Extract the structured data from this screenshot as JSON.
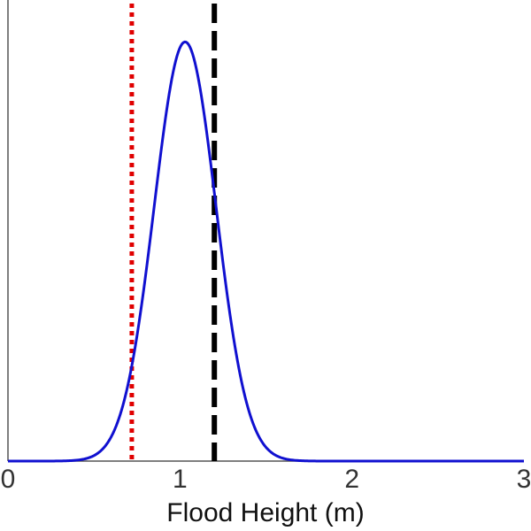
{
  "chart_data": {
    "type": "line",
    "xlabel": "Flood Height (m)",
    "ylabel": "",
    "xlim": [
      0,
      3
    ],
    "ylim": [
      0,
      1.1
    ],
    "x_ticks": [
      {
        "value": 0,
        "label": "0"
      },
      {
        "value": 1,
        "label": "1"
      },
      {
        "value": 2,
        "label": "2"
      },
      {
        "value": 3,
        "label": "3"
      }
    ],
    "grid": false,
    "series": [
      {
        "kind": "density-curve",
        "distribution": "normal",
        "mean": 1.03,
        "std": 0.18,
        "peak": 1.0,
        "color": "#1010d0"
      }
    ],
    "reference_lines": [
      {
        "x": 0.72,
        "style": "dotted",
        "color": "#e00000"
      },
      {
        "x": 1.2,
        "style": "dashed",
        "color": "#000000"
      }
    ],
    "colors": {
      "axis": "#555555",
      "tick_label": "#333333",
      "axis_title": "#111111"
    }
  }
}
